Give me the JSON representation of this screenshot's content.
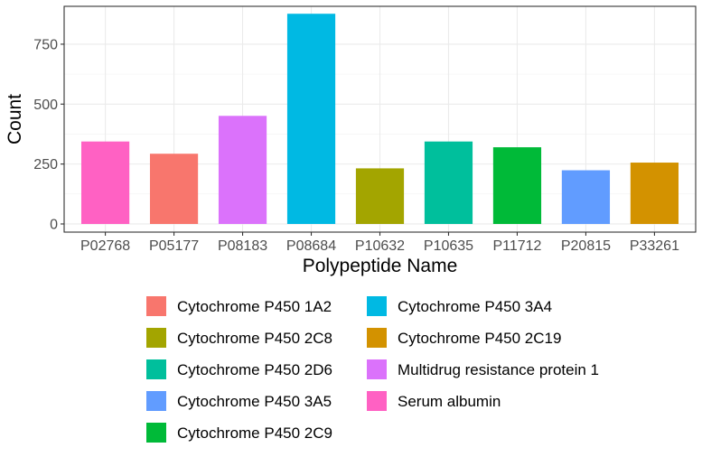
{
  "chart_data": {
    "type": "bar",
    "categories": [
      "P02768",
      "P05177",
      "P08183",
      "P08684",
      "P10632",
      "P10635",
      "P11712",
      "P20815",
      "P33261"
    ],
    "values": [
      344,
      293,
      451,
      877,
      232,
      344,
      320,
      224,
      256
    ],
    "bar_legend_index": [
      8,
      0,
      7,
      5,
      1,
      2,
      4,
      3,
      6
    ],
    "xlabel": "Polypeptide Name",
    "ylabel": "Count",
    "ylim": [
      -34,
      908
    ],
    "yticks": [
      0,
      250,
      500,
      750
    ],
    "ytick_labels": [
      "0",
      "250",
      "500",
      "750"
    ],
    "grid": true,
    "legend_position": "bottom",
    "legend": [
      {
        "label": "Cytochrome P450 1A2",
        "color": "#F8766D"
      },
      {
        "label": "Cytochrome P450 2C8",
        "color": "#A3A500"
      },
      {
        "label": "Cytochrome P450 2D6",
        "color": "#00BF9C"
      },
      {
        "label": "Cytochrome P450 3A5",
        "color": "#619CFF"
      },
      {
        "label": "Cytochrome P450 2C9",
        "color": "#00BA38"
      },
      {
        "label": "Cytochrome P450 3A4",
        "color": "#00B9E3"
      },
      {
        "label": "Cytochrome P450 2C19",
        "color": "#D39200"
      },
      {
        "label": "Multidrug resistance protein 1",
        "color": "#DB72FB"
      },
      {
        "label": "Serum albumin",
        "color": "#FF61C3"
      }
    ]
  }
}
